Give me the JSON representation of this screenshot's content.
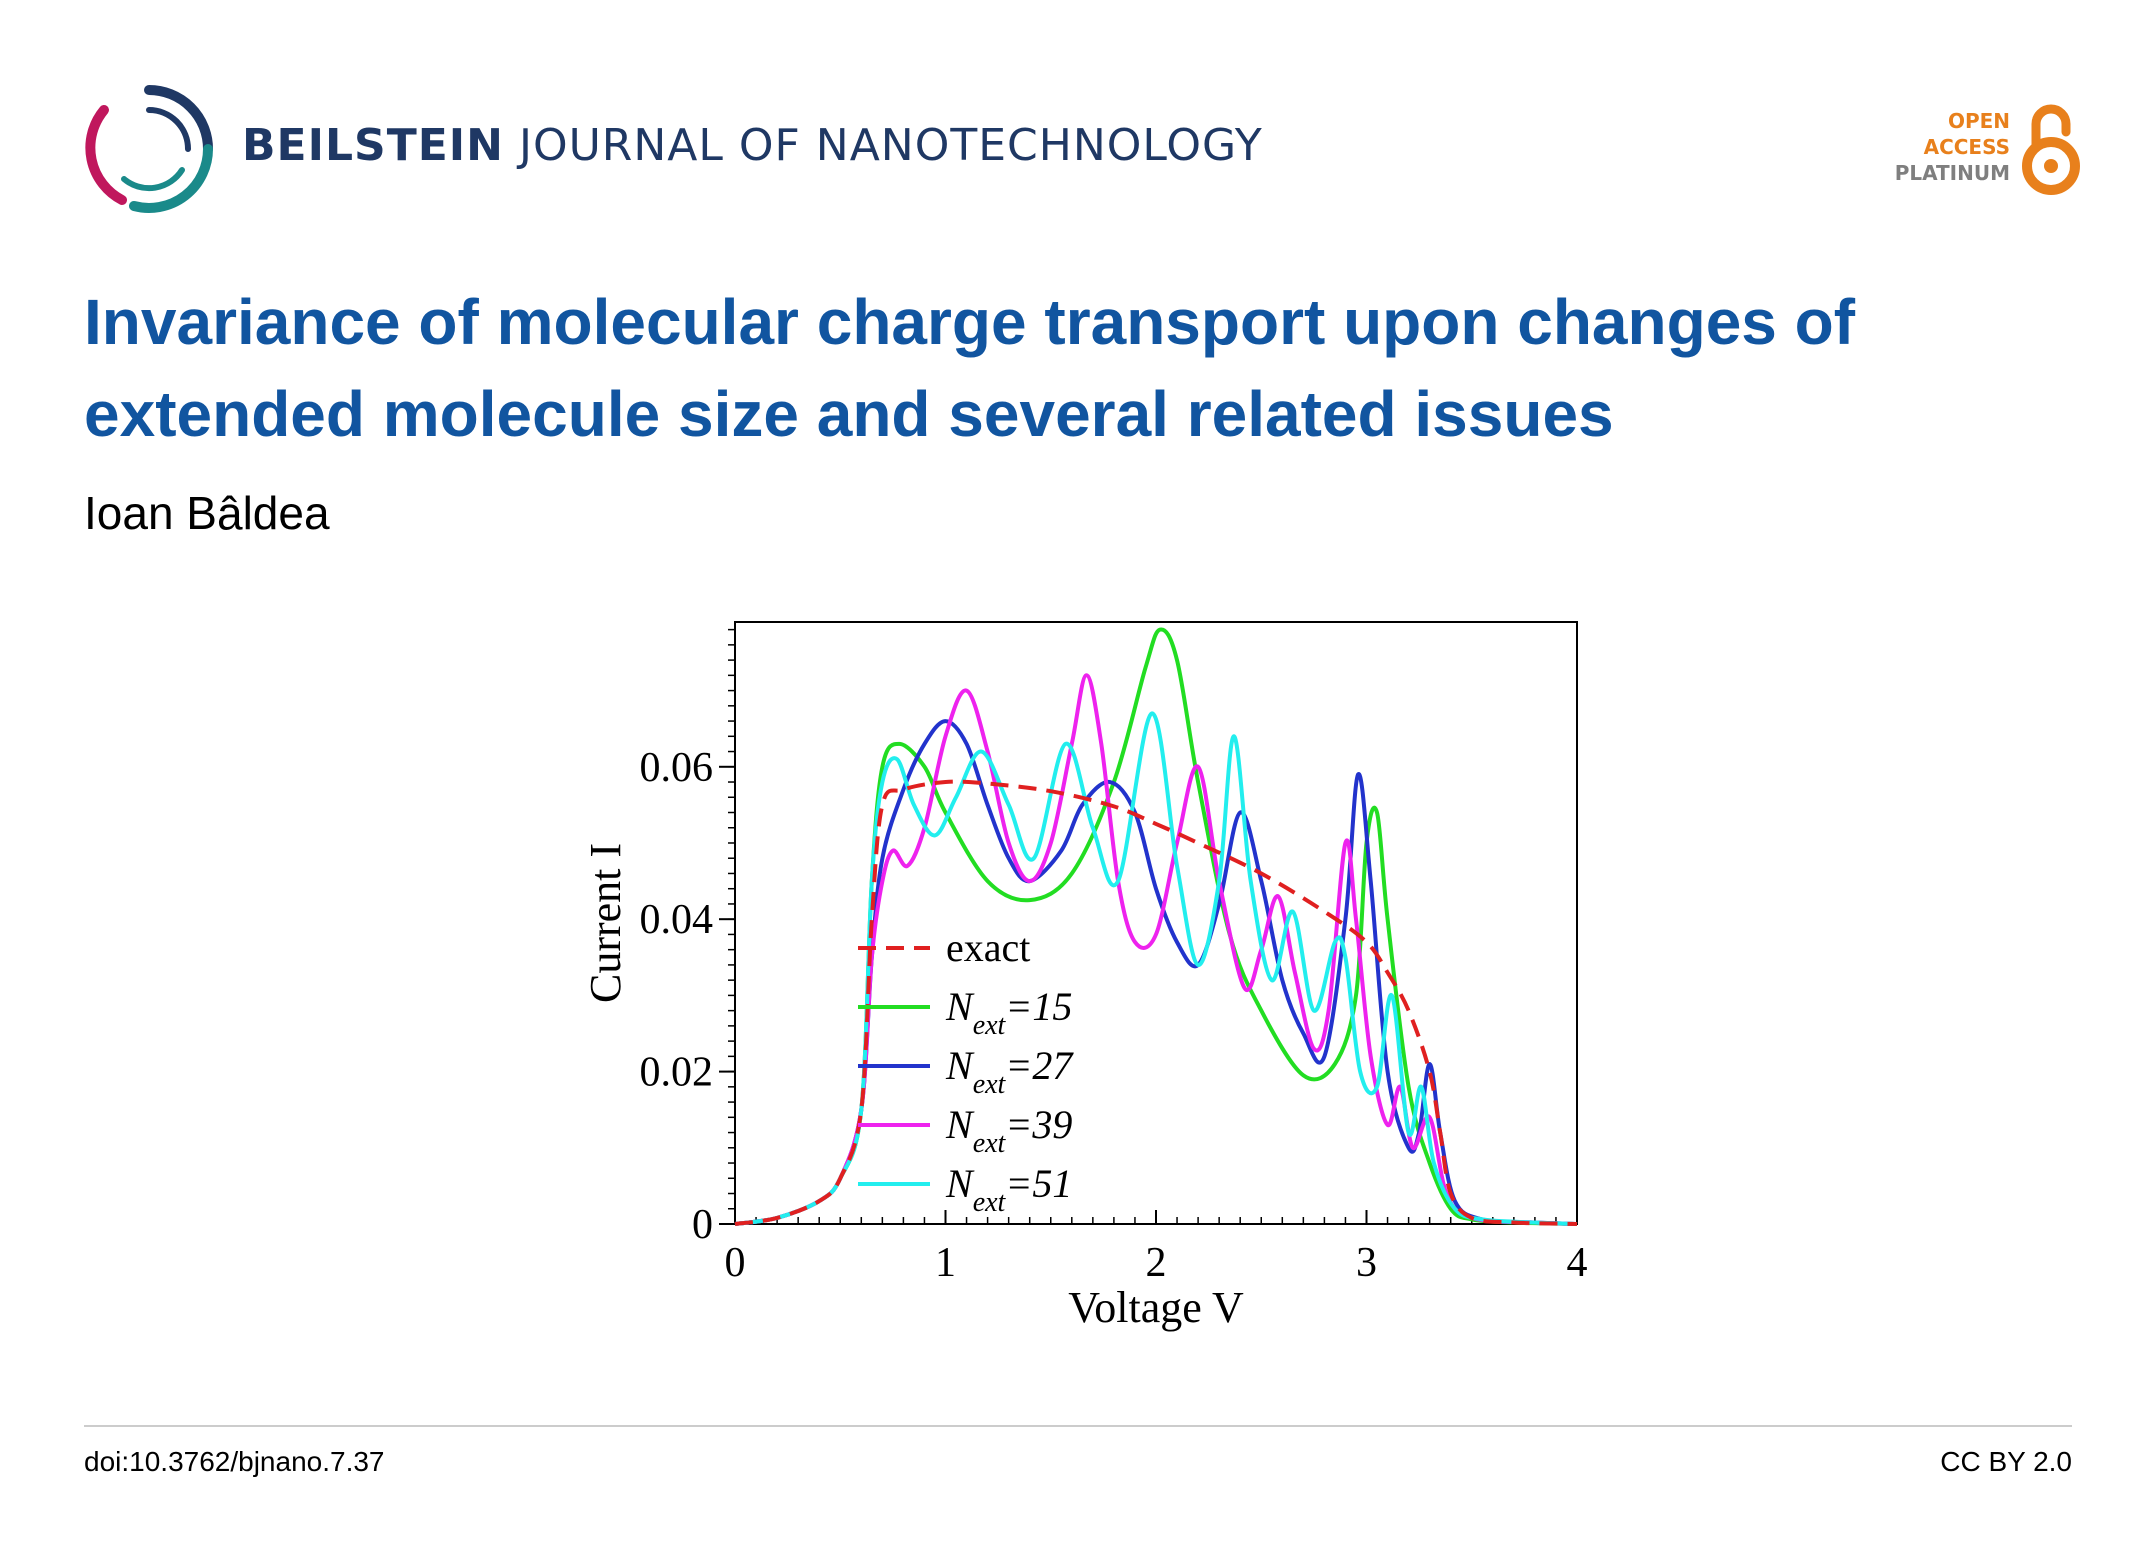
{
  "journal": {
    "name_bold": "BEILSTEIN",
    "name_rest": "JOURNAL OF NANOTECHNOLOGY"
  },
  "open_access": {
    "line1": "OPEN",
    "line2": "ACCESS",
    "line3": "PLATINUM",
    "color": "#e8801c"
  },
  "article": {
    "title": "Invariance of molecular charge transport upon changes of extended molecule size and several related issues",
    "author": "Ioan Bâldea"
  },
  "footer": {
    "doi": "doi:10.3762/bjnano.7.37",
    "license": "CC BY 2.0"
  },
  "icons": {
    "journal_logo": "beilstein-circle-logo",
    "open_access": "open-lock-icon"
  },
  "chart_data": {
    "type": "line",
    "xlabel": "Voltage V",
    "ylabel": "Current I",
    "xlim": [
      0,
      4
    ],
    "ylim": [
      0,
      0.079
    ],
    "xticks": [
      0,
      1,
      2,
      3,
      4
    ],
    "xtick_labels": [
      "0",
      "1",
      "2",
      "3",
      "4"
    ],
    "yticks": [
      0,
      0.02,
      0.04,
      0.06
    ],
    "ytick_labels": [
      "0",
      "0.02",
      "0.04",
      "0.06"
    ],
    "legend_position": "lower-left-inside",
    "series": [
      {
        "name": "exact",
        "legend_sub": "",
        "legend_suffix": "",
        "color": "#e02020",
        "dashed": true,
        "x": [
          0,
          0.2,
          0.4,
          0.5,
          0.6,
          0.65,
          0.7,
          0.8,
          1.0,
          1.2,
          1.5,
          1.8,
          2.0,
          2.2,
          2.5,
          2.8,
          3.0,
          3.1,
          3.2,
          3.3,
          3.35,
          3.4,
          3.5,
          3.7,
          4.0
        ],
        "y": [
          0,
          0.0008,
          0.003,
          0.006,
          0.015,
          0.04,
          0.055,
          0.057,
          0.058,
          0.0578,
          0.0568,
          0.0548,
          0.0525,
          0.05,
          0.046,
          0.041,
          0.037,
          0.033,
          0.028,
          0.02,
          0.012,
          0.004,
          0.0008,
          0.0002,
          0
        ]
      },
      {
        "name": "N",
        "legend_sub": "ext",
        "legend_suffix": "=15",
        "color": "#22dd22",
        "dashed": false,
        "x": [
          0,
          0.2,
          0.4,
          0.5,
          0.6,
          0.65,
          0.7,
          0.78,
          0.9,
          1.0,
          1.2,
          1.4,
          1.6,
          1.8,
          1.95,
          2.02,
          2.1,
          2.2,
          2.35,
          2.5,
          2.7,
          2.85,
          2.95,
          3.0,
          3.05,
          3.1,
          3.2,
          3.3,
          3.4,
          3.5,
          3.7,
          4.0
        ],
        "y": [
          0,
          0.0008,
          0.003,
          0.006,
          0.015,
          0.045,
          0.06,
          0.063,
          0.06,
          0.054,
          0.045,
          0.0425,
          0.046,
          0.058,
          0.073,
          0.078,
          0.074,
          0.058,
          0.038,
          0.028,
          0.0195,
          0.021,
          0.03,
          0.05,
          0.054,
          0.04,
          0.018,
          0.008,
          0.002,
          0.0006,
          0.0002,
          0
        ]
      },
      {
        "name": "N",
        "legend_sub": "ext",
        "legend_suffix": "=27",
        "color": "#2233cc",
        "dashed": false,
        "x": [
          0,
          0.2,
          0.4,
          0.5,
          0.6,
          0.65,
          0.7,
          0.8,
          0.9,
          1.0,
          1.1,
          1.2,
          1.3,
          1.4,
          1.55,
          1.65,
          1.78,
          1.9,
          2.0,
          2.1,
          2.2,
          2.3,
          2.4,
          2.5,
          2.6,
          2.7,
          2.8,
          2.9,
          2.96,
          3.02,
          3.1,
          3.2,
          3.25,
          3.3,
          3.35,
          3.42,
          3.55,
          3.8,
          4.0
        ],
        "y": [
          0,
          0.0008,
          0.003,
          0.006,
          0.015,
          0.035,
          0.048,
          0.057,
          0.063,
          0.066,
          0.063,
          0.055,
          0.048,
          0.045,
          0.049,
          0.055,
          0.058,
          0.054,
          0.044,
          0.037,
          0.034,
          0.042,
          0.054,
          0.045,
          0.032,
          0.025,
          0.022,
          0.04,
          0.059,
          0.045,
          0.02,
          0.01,
          0.012,
          0.021,
          0.012,
          0.003,
          0.0006,
          0.0002,
          0
        ]
      },
      {
        "name": "N",
        "legend_sub": "ext",
        "legend_suffix": "=39",
        "color": "#ee22ee",
        "dashed": false,
        "x": [
          0,
          0.2,
          0.4,
          0.5,
          0.6,
          0.65,
          0.7,
          0.75,
          0.82,
          0.9,
          1.0,
          1.1,
          1.2,
          1.3,
          1.4,
          1.5,
          1.6,
          1.67,
          1.74,
          1.82,
          1.9,
          2.0,
          2.1,
          2.2,
          2.3,
          2.42,
          2.5,
          2.58,
          2.66,
          2.75,
          2.82,
          2.9,
          2.95,
          3.02,
          3.1,
          3.16,
          3.22,
          3.3,
          3.38,
          3.5,
          3.8,
          4.0
        ],
        "y": [
          0,
          0.0008,
          0.003,
          0.006,
          0.015,
          0.035,
          0.045,
          0.049,
          0.047,
          0.052,
          0.064,
          0.07,
          0.062,
          0.05,
          0.045,
          0.05,
          0.063,
          0.072,
          0.063,
          0.045,
          0.037,
          0.038,
          0.05,
          0.06,
          0.045,
          0.031,
          0.036,
          0.043,
          0.033,
          0.023,
          0.028,
          0.05,
          0.04,
          0.022,
          0.013,
          0.018,
          0.01,
          0.014,
          0.004,
          0.0008,
          0.0002,
          0
        ]
      },
      {
        "name": "N",
        "legend_sub": "ext",
        "legend_suffix": "=51",
        "color": "#22eeee",
        "dashed": false,
        "x": [
          0,
          0.2,
          0.4,
          0.5,
          0.6,
          0.65,
          0.7,
          0.77,
          0.85,
          0.95,
          1.05,
          1.17,
          1.3,
          1.42,
          1.57,
          1.7,
          1.82,
          1.98,
          2.1,
          2.2,
          2.3,
          2.37,
          2.45,
          2.55,
          2.65,
          2.75,
          2.85,
          2.9,
          2.97,
          3.05,
          3.12,
          3.2,
          3.26,
          3.32,
          3.42,
          3.55,
          3.8,
          4.0
        ],
        "y": [
          0,
          0.0008,
          0.003,
          0.006,
          0.015,
          0.045,
          0.058,
          0.061,
          0.055,
          0.051,
          0.056,
          0.062,
          0.055,
          0.048,
          0.063,
          0.052,
          0.045,
          0.067,
          0.047,
          0.034,
          0.045,
          0.064,
          0.045,
          0.032,
          0.041,
          0.028,
          0.037,
          0.035,
          0.02,
          0.018,
          0.03,
          0.012,
          0.018,
          0.008,
          0.002,
          0.0006,
          0.0002,
          0
        ]
      }
    ]
  }
}
